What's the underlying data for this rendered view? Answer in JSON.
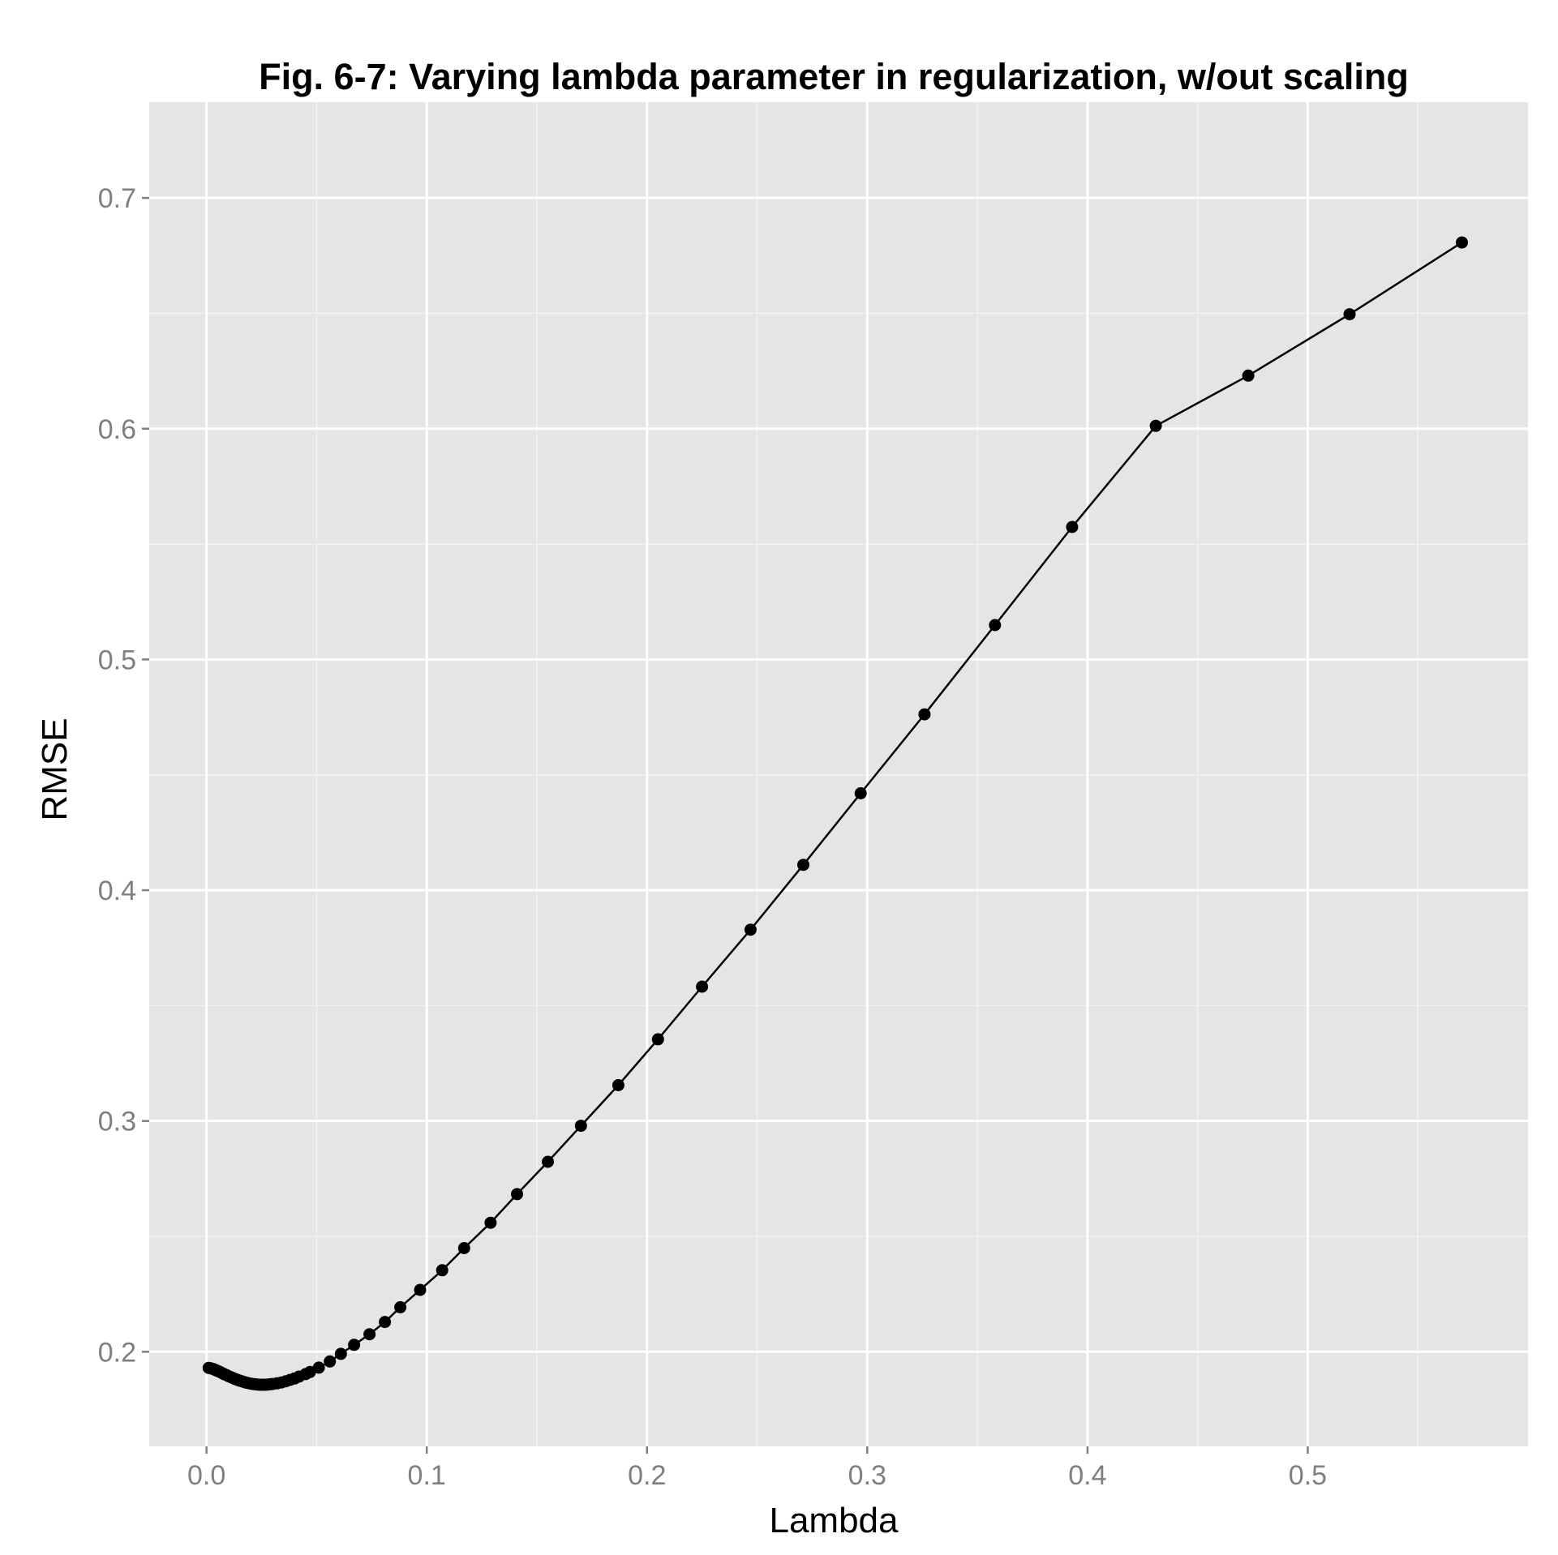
{
  "chart_data": {
    "type": "line",
    "title": "Fig. 6-7: Varying lambda parameter in regularization, w/out scaling",
    "xlabel": "Lambda",
    "ylabel": "RMSE",
    "xlim": [
      -0.026,
      0.6
    ],
    "ylim": [
      0.159,
      0.7415
    ],
    "x_ticks": [
      0.0,
      0.1,
      0.2,
      0.3,
      0.4,
      0.5
    ],
    "x_tick_labels": [
      "0.0",
      "0.1",
      "0.2",
      "0.3",
      "0.4",
      "0.5"
    ],
    "y_ticks": [
      0.2,
      0.3,
      0.4,
      0.5,
      0.6,
      0.7
    ],
    "y_tick_labels": [
      "0.2",
      "0.3",
      "0.4",
      "0.5",
      "0.6",
      "0.7"
    ],
    "grid": true,
    "markers": true,
    "series": [
      {
        "x": [
          0.001,
          0.002,
          0.003,
          0.004,
          0.005,
          0.006,
          0.007,
          0.008,
          0.009,
          0.01,
          0.011,
          0.012,
          0.013,
          0.014,
          0.015,
          0.016,
          0.017,
          0.018,
          0.019,
          0.02,
          0.021,
          0.022,
          0.023,
          0.024,
          0.025,
          0.026,
          0.027,
          0.028,
          0.029,
          0.03,
          0.032,
          0.034,
          0.036,
          0.038,
          0.04,
          0.042,
          0.045,
          0.047,
          0.051,
          0.056,
          0.061,
          0.067,
          0.074,
          0.081,
          0.088,
          0.097,
          0.107,
          0.117,
          0.129,
          0.141,
          0.155,
          0.17,
          0.187,
          0.205,
          0.225,
          0.247,
          0.271,
          0.297,
          0.326,
          0.358,
          0.393,
          0.431,
          0.473,
          0.519,
          0.57
        ],
        "y": [
          0.193,
          0.1928,
          0.1925,
          0.1921,
          0.1917,
          0.1913,
          0.1908,
          0.1903,
          0.1899,
          0.1894,
          0.189,
          0.1886,
          0.1882,
          0.1878,
          0.1875,
          0.1872,
          0.1869,
          0.1866,
          0.1864,
          0.1862,
          0.186,
          0.1859,
          0.1858,
          0.1857,
          0.1857,
          0.1857,
          0.1857,
          0.1858,
          0.1859,
          0.186,
          0.1863,
          0.1867,
          0.1872,
          0.1878,
          0.1884,
          0.1892,
          0.1903,
          0.1912,
          0.1931,
          0.1958,
          0.1991,
          0.203,
          0.2076,
          0.2129,
          0.2193,
          0.2268,
          0.2353,
          0.2449,
          0.2559,
          0.2683,
          0.2823,
          0.2979,
          0.3155,
          0.3354,
          0.3582,
          0.3829,
          0.411,
          0.442,
          0.4762,
          0.5149,
          0.5574,
          0.6012,
          0.623,
          0.6496,
          0.6807
        ]
      }
    ],
    "colors": {
      "panel_background": "#e5e5e5",
      "major_grid": "#ffffff",
      "minor_grid": "#f2f2f2",
      "series": "#000000",
      "tick_text": "#7f7f7f"
    }
  }
}
